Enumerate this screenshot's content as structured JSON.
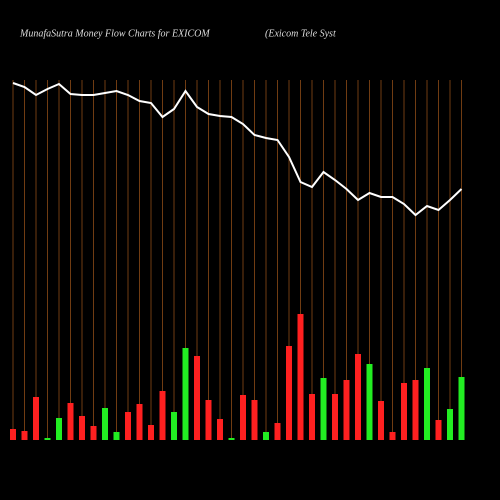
{
  "chart_data": {
    "type": "money-flow",
    "title": "MunafaSutra  Money Flow  Charts for EXICOM",
    "subtitle": "(Exicom Tele   Syst",
    "grid": true,
    "grid_color": "#a0561a",
    "line_color": "#ffffff",
    "ylim": [
      0,
      440
    ],
    "bars": {
      "values": [
        11,
        9,
        43,
        2,
        22,
        37,
        24,
        14,
        32,
        8,
        28,
        36,
        15,
        49,
        28,
        92,
        84,
        40,
        21,
        2,
        45,
        40,
        8,
        17,
        94,
        126,
        46,
        62,
        46,
        60,
        86,
        76,
        39,
        8,
        57,
        60,
        72,
        20,
        31,
        63
      ],
      "colors": [
        "#ff2020",
        "#ff2020",
        "#ff2020",
        "#22ee22",
        "#22ee22",
        "#ff2020",
        "#ff2020",
        "#ff2020",
        "#22ee22",
        "#22ee22",
        "#ff2020",
        "#ff2020",
        "#ff2020",
        "#ff2020",
        "#22ee22",
        "#22ee22",
        "#ff2020",
        "#ff2020",
        "#ff2020",
        "#22ee22",
        "#ff2020",
        "#ff2020",
        "#22ee22",
        "#ff2020",
        "#ff2020",
        "#ff2020",
        "#ff2020",
        "#22ee22",
        "#ff2020",
        "#ff2020",
        "#ff2020",
        "#22ee22",
        "#ff2020",
        "#ff2020",
        "#ff2020",
        "#ff2020",
        "#22ee22",
        "#ff2020",
        "#22ee22",
        "#22ee22"
      ]
    },
    "line": {
      "values": [
        357,
        353,
        345,
        351,
        356,
        346,
        345,
        345,
        347,
        349,
        345,
        339,
        337,
        323,
        331,
        349,
        333,
        326,
        324,
        323,
        316,
        305,
        302,
        300,
        283,
        258,
        253,
        268,
        260,
        251,
        240,
        247,
        243,
        243,
        236,
        225,
        234,
        230,
        240,
        251
      ]
    }
  }
}
